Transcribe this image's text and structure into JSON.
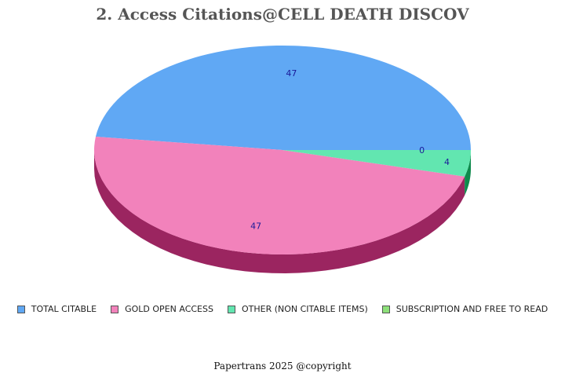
{
  "chart_data": {
    "type": "pie",
    "title": "2. Access Citations@CELL DEATH DISCOV",
    "slices": [
      {
        "label": "TOTAL CITABLE",
        "value": 47,
        "color": "#60a8f4",
        "side_color": "#3a7cc2"
      },
      {
        "label": "GOLD OPEN ACCESS",
        "value": 47,
        "color": "#f282bb",
        "side_color": "#9b2560"
      },
      {
        "label": "OTHER (NON CITABLE ITEMS)",
        "value": 4,
        "color": "#62e6b0",
        "side_color": "#0e8a4c"
      },
      {
        "label": "SUBSCRIPTION AND FREE TO READ",
        "value": 0,
        "color": "#8de07a",
        "side_color": "#4a9c3a"
      }
    ],
    "legend_position": "bottom"
  },
  "footer": "Papertrans 2025 @copyright"
}
